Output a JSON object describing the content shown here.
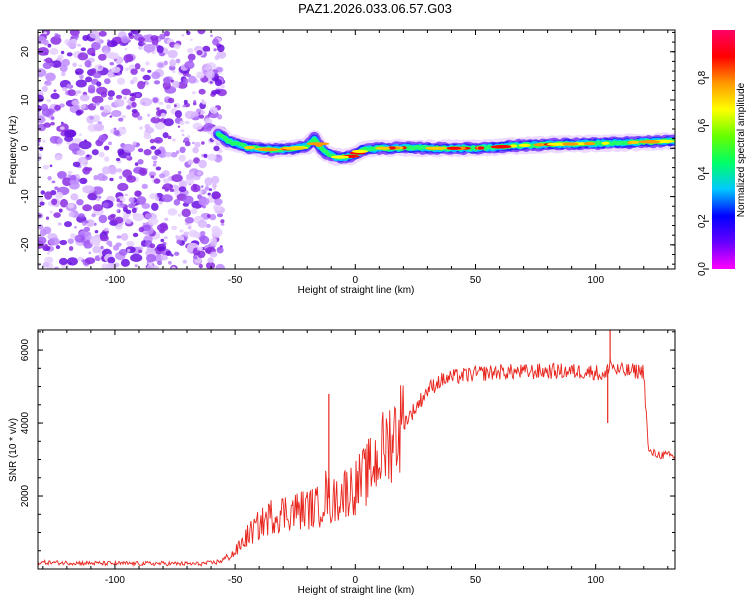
{
  "title": "PAZ1.2026.033.06.57.G03",
  "colors": {
    "scatter_purple": "#8a2be2",
    "snr_line": "#e8261e",
    "frame": "#000000"
  },
  "chart_data": [
    {
      "type": "heatmap",
      "name": "spectrogram",
      "xlabel": "Height of straight line (km)",
      "ylabel": "Frequency (Hz)",
      "xlim": [
        -132,
        133
      ],
      "ylim": [
        -25,
        24.5
      ],
      "xticks": [
        -100,
        -50,
        0,
        50,
        100
      ],
      "xtick_labels": [
        "-100",
        "-50",
        "0",
        "50",
        "100"
      ],
      "yticks": [
        -20,
        -10,
        0,
        10,
        20
      ],
      "ytick_labels": [
        "-20",
        "-10",
        "0",
        "10",
        "20"
      ],
      "noise_region_km": [
        -132,
        -55
      ],
      "signal_track": {
        "x": [
          -57,
          -53,
          -45,
          -35,
          -25,
          -20,
          -17,
          -15,
          -12,
          -8,
          -3,
          0,
          3,
          10,
          20,
          30,
          40,
          50,
          60,
          70,
          80,
          90,
          100,
          110,
          120,
          133
        ],
        "freq": [
          3,
          1.5,
          0.2,
          -0.3,
          0,
          0.5,
          2,
          0.5,
          -1,
          -1.8,
          -1.8,
          -1.3,
          -0.3,
          0,
          0.1,
          0,
          0,
          0,
          0.3,
          0.6,
          0.8,
          0.9,
          1,
          1.1,
          1.3,
          1.5
        ]
      },
      "colorbar": {
        "label": "Normalized spectral amplitude",
        "range": [
          0,
          1
        ],
        "ticks": [
          0.0,
          0.2,
          0.4,
          0.6,
          0.8
        ],
        "tick_labels": [
          "0.0",
          "0.2",
          "0.4",
          "0.6",
          "0.8"
        ],
        "stops": [
          "#ff00ff",
          "#6600ff",
          "#0000ff",
          "#00c8ff",
          "#00ff66",
          "#66ff00",
          "#ffff00",
          "#ff9900",
          "#ff0000",
          "#ff0066"
        ]
      }
    },
    {
      "type": "line",
      "name": "snr",
      "xlabel": "Height of straight line (km)",
      "ylabel": "SNR (10 * v/v)",
      "xlim": [
        -132,
        133
      ],
      "ylim": [
        0,
        6550
      ],
      "xticks": [
        -100,
        -50,
        0,
        50,
        100
      ],
      "xtick_labels": [
        "-100",
        "-50",
        "0",
        "50",
        "100"
      ],
      "yticks": [
        2000,
        4000,
        6000
      ],
      "ytick_labels": [
        "2000",
        "4000",
        "6000"
      ],
      "series": [
        {
          "name": "SNR",
          "x": [
            -132,
            -120,
            -100,
            -80,
            -65,
            -58,
            -55,
            -50,
            -45,
            -40,
            -35,
            -30,
            -25,
            -20,
            -15,
            -12,
            -10,
            -5,
            0,
            5,
            10,
            15,
            20,
            25,
            30,
            35,
            40,
            50,
            60,
            70,
            80,
            90,
            100,
            104,
            106,
            108,
            112,
            118,
            120,
            122,
            125,
            133
          ],
          "y": [
            180,
            170,
            150,
            150,
            140,
            180,
            250,
            450,
            900,
            1200,
            1450,
            1550,
            1600,
            1650,
            1700,
            2100,
            1800,
            2100,
            2250,
            2600,
            3100,
            3600,
            4000,
            4400,
            4900,
            5150,
            5250,
            5350,
            5400,
            5400,
            5420,
            5420,
            5400,
            5250,
            5700,
            5450,
            5420,
            5420,
            5420,
            3200,
            3150,
            3080
          ]
        }
      ],
      "spikes": [
        {
          "x": -11,
          "y": 4800
        },
        {
          "x": 106,
          "y": 6550
        },
        {
          "x": 105,
          "y": 4000
        }
      ]
    }
  ]
}
